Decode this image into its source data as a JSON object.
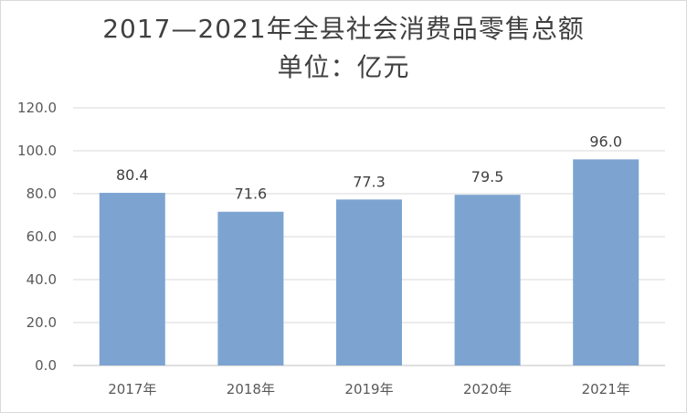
{
  "chart_data": {
    "type": "bar",
    "title": "2017—2021年全县社会消费品零售总额",
    "subtitle": "单位：亿元",
    "categories": [
      "2017年",
      "2018年",
      "2019年",
      "2020年",
      "2021年"
    ],
    "values": [
      80.4,
      71.6,
      77.3,
      79.5,
      96.0
    ],
    "data_labels": [
      "80.4",
      "71.6",
      "77.3",
      "79.5",
      "96.0"
    ],
    "ylim": [
      0,
      120
    ],
    "yticks": [
      "0.0",
      "20.0",
      "40.0",
      "60.0",
      "80.0",
      "100.0",
      "120.0"
    ],
    "grid": true,
    "legend": "none",
    "bar_color": "#7da4d1",
    "grid_color": "#d9d9d9"
  }
}
